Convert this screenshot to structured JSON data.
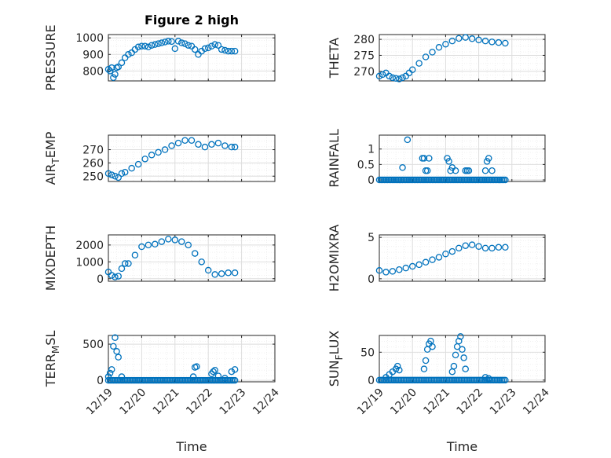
{
  "chart_data": [
    {
      "type": "scatter",
      "id": "pressure",
      "title": "Figure 2 high",
      "ylabel": "PRESSURE",
      "ylim": [
        740,
        1020
      ],
      "yticks": [
        800,
        900,
        1000
      ],
      "ytick_labels": [
        "800",
        "900",
        "1000"
      ],
      "x": [
        0,
        0.05,
        0.1,
        0.15,
        0.2,
        0.25,
        0.3,
        0.4,
        0.5,
        0.6,
        0.7,
        0.8,
        0.9,
        1,
        1.1,
        1.2,
        1.3,
        1.4,
        1.5,
        1.6,
        1.7,
        1.8,
        1.9,
        2,
        2.1,
        2.2,
        2.3,
        2.4,
        2.5,
        2.6,
        2.7,
        2.8,
        2.9,
        3,
        3.1,
        3.2,
        3.3,
        3.4,
        3.5,
        3.6,
        3.7,
        3.8
      ],
      "y": [
        810,
        800,
        820,
        760,
        780,
        820,
        825,
        850,
        880,
        900,
        910,
        930,
        945,
        950,
        950,
        945,
        955,
        960,
        965,
        970,
        975,
        980,
        978,
        935,
        980,
        970,
        965,
        955,
        950,
        930,
        900,
        920,
        935,
        940,
        950,
        960,
        955,
        930,
        925,
        920,
        920,
        920
      ]
    },
    {
      "type": "scatter",
      "id": "theta",
      "ylabel": "THETA",
      "ylim": [
        267,
        281.5
      ],
      "yticks": [
        270,
        275,
        280
      ],
      "ytick_labels": [
        "270",
        "275",
        "280"
      ],
      "x": [
        0,
        0.1,
        0.2,
        0.3,
        0.4,
        0.5,
        0.6,
        0.7,
        0.8,
        0.9,
        1,
        1.2,
        1.4,
        1.6,
        1.8,
        2,
        2.2,
        2.4,
        2.6,
        2.8,
        3,
        3.2,
        3.4,
        3.6,
        3.8
      ],
      "y": [
        268.5,
        269,
        269.5,
        268.5,
        268,
        267.8,
        267.6,
        268,
        268.5,
        269.5,
        270.5,
        272.5,
        274.5,
        276,
        277.5,
        278.5,
        279.5,
        280.3,
        280.6,
        280.2,
        279.8,
        279.5,
        279.2,
        279,
        278.8
      ]
    },
    {
      "type": "scatter",
      "id": "air_temp",
      "ylabel": "AIR_TEMP",
      "ylim": [
        246,
        281
      ],
      "yticks": [
        250,
        260,
        270
      ],
      "ytick_labels": [
        "250",
        "260",
        "270"
      ],
      "x": [
        0,
        0.1,
        0.2,
        0.3,
        0.4,
        0.5,
        0.7,
        0.9,
        1.1,
        1.3,
        1.5,
        1.7,
        1.9,
        2.1,
        2.3,
        2.5,
        2.7,
        2.9,
        3.1,
        3.3,
        3.5,
        3.7,
        3.8
      ],
      "y": [
        252,
        251,
        250,
        249,
        252,
        253,
        256,
        259,
        263,
        266,
        268,
        270,
        273,
        275,
        277,
        277,
        274,
        272,
        274,
        275,
        273,
        272,
        272
      ]
    },
    {
      "type": "scatter",
      "id": "rainfall",
      "ylabel": "RAINFALL",
      "ylim": [
        -0.05,
        1.45
      ],
      "yticks": [
        0,
        0.5,
        1
      ],
      "ytick_labels": [
        "0",
        "0.5",
        "1"
      ],
      "x": [
        0.7,
        0.85,
        1.3,
        1.35,
        1.4,
        1.45,
        1.5,
        2.05,
        2.1,
        2.15,
        2.2,
        2.3,
        2.6,
        2.65,
        2.7,
        3.2,
        3.25,
        3.3,
        3.4
      ],
      "y": [
        0.4,
        1.3,
        0.7,
        0.7,
        0.3,
        0.3,
        0.7,
        0.7,
        0.6,
        0.3,
        0.4,
        0.3,
        0.3,
        0.3,
        0.3,
        0.3,
        0.6,
        0.7,
        0.3
      ],
      "zero_band": [
        [
          0,
          3.8
        ]
      ]
    },
    {
      "type": "scatter",
      "id": "mixdepth",
      "ylabel": "MIXDEPTH",
      "ylim": [
        -150,
        2600
      ],
      "yticks": [
        0,
        1000,
        2000
      ],
      "ytick_labels": [
        "0",
        "1000",
        "2000"
      ],
      "x": [
        0,
        0.1,
        0.2,
        0.3,
        0.4,
        0.5,
        0.6,
        0.8,
        1,
        1.2,
        1.4,
        1.6,
        1.8,
        2,
        2.2,
        2.4,
        2.6,
        2.8,
        3,
        3.2,
        3.4,
        3.6,
        3.8
      ],
      "y": [
        400,
        200,
        100,
        150,
        600,
        900,
        900,
        1400,
        1900,
        2000,
        2050,
        2200,
        2350,
        2300,
        2200,
        2000,
        1500,
        1000,
        500,
        250,
        300,
        350,
        350
      ]
    },
    {
      "type": "scatter",
      "id": "h2omixra",
      "ylabel": "H2OMIXRA",
      "ylim": [
        -0.3,
        5.3
      ],
      "yticks": [
        0,
        5
      ],
      "ytick_labels": [
        "0",
        "5"
      ],
      "x": [
        0,
        0.2,
        0.4,
        0.6,
        0.8,
        1,
        1.2,
        1.4,
        1.6,
        1.8,
        2,
        2.2,
        2.4,
        2.6,
        2.8,
        3,
        3.2,
        3.4,
        3.6,
        3.8
      ],
      "y": [
        1,
        0.8,
        0.9,
        1.1,
        1.3,
        1.5,
        1.7,
        2,
        2.3,
        2.6,
        3,
        3.3,
        3.7,
        4,
        4.1,
        3.9,
        3.7,
        3.7,
        3.8,
        3.8
      ]
    },
    {
      "type": "scatter",
      "id": "terr_msl",
      "ylabel": "TERR_MSL",
      "ylim": [
        -20,
        620
      ],
      "yticks": [
        0,
        500
      ],
      "ytick_labels": [
        "0",
        "500"
      ],
      "x": [
        0,
        0.05,
        0.1,
        0.15,
        0.2,
        0.25,
        0.3,
        0.4,
        2.55,
        2.6,
        2.65,
        3.1,
        3.15,
        3.2,
        3.3,
        3.5,
        3.7,
        3.8
      ],
      "y": [
        50,
        100,
        150,
        470,
        590,
        400,
        320,
        50,
        50,
        180,
        190,
        90,
        120,
        140,
        60,
        30,
        120,
        150
      ],
      "zero_band": [
        [
          0,
          3.8
        ]
      ]
    },
    {
      "type": "scatter",
      "id": "sun_flux",
      "ylabel": "SUN_FLUX",
      "ylim": [
        -3,
        80
      ],
      "yticks": [
        0,
        50
      ],
      "ytick_labels": [
        "0",
        "50"
      ],
      "x": [
        0.2,
        0.3,
        0.4,
        0.5,
        0.55,
        0.6,
        1.35,
        1.4,
        1.45,
        1.5,
        1.55,
        1.6,
        2.2,
        2.25,
        2.3,
        2.35,
        2.4,
        2.45,
        2.5,
        2.55,
        2.6,
        3.2,
        3.3
      ],
      "y": [
        5,
        10,
        15,
        20,
        25,
        18,
        20,
        35,
        55,
        65,
        70,
        60,
        15,
        25,
        45,
        60,
        70,
        78,
        55,
        40,
        20,
        5,
        3
      ],
      "zero_band": [
        [
          0,
          3.8
        ]
      ]
    }
  ],
  "x_axis": {
    "label": "Time",
    "ticks": [
      "12/19",
      "12/20",
      "12/21",
      "12/22",
      "12/23",
      "12/24"
    ],
    "range": [
      0,
      5
    ]
  },
  "colors": {
    "marker": "#0072BD",
    "grid": "#dedede",
    "axis": "#262626"
  }
}
